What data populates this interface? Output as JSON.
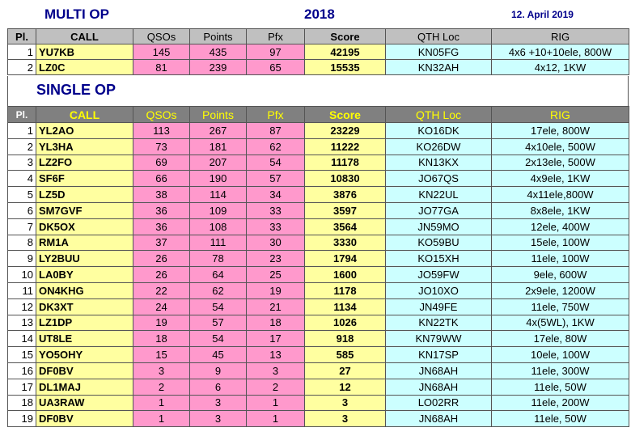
{
  "header": {
    "multi_title": "MULTI OP",
    "year": "2018",
    "date": "12. April 2019"
  },
  "single_title": "SINGLE OP",
  "columns": [
    "Pl.",
    "CALL",
    "QSOs",
    "Points",
    "Pfx",
    "Score",
    "QTH Loc",
    "RIG"
  ],
  "multi_rows": [
    {
      "pl": "1",
      "call": "YU7KB",
      "qsos": "145",
      "points": "435",
      "pfx": "97",
      "score": "42195",
      "qth": "KN05FG",
      "rig": "4x6 +10+10ele, 800W"
    },
    {
      "pl": "2",
      "call": "LZ0C",
      "qsos": "81",
      "points": "239",
      "pfx": "65",
      "score": "15535",
      "qth": "KN32AH",
      "rig": "4x12, 1KW"
    }
  ],
  "single_rows": [
    {
      "pl": "1",
      "call": "YL2AO",
      "qsos": "113",
      "points": "267",
      "pfx": "87",
      "score": "23229",
      "qth": "KO16DK",
      "rig": "17ele, 800W"
    },
    {
      "pl": "2",
      "call": "YL3HA",
      "qsos": "73",
      "points": "181",
      "pfx": "62",
      "score": "11222",
      "qth": "KO26DW",
      "rig": "4x10ele, 500W"
    },
    {
      "pl": "3",
      "call": "LZ2FO",
      "qsos": "69",
      "points": "207",
      "pfx": "54",
      "score": "11178",
      "qth": "KN13KX",
      "rig": "2x13ele, 500W"
    },
    {
      "pl": "4",
      "call": "SF6F",
      "qsos": "66",
      "points": "190",
      "pfx": "57",
      "score": "10830",
      "qth": "JO67QS",
      "rig": "4x9ele, 1KW"
    },
    {
      "pl": "5",
      "call": "LZ5D",
      "qsos": "38",
      "points": "114",
      "pfx": "34",
      "score": "3876",
      "qth": "KN22UL",
      "rig": "4x11ele,800W"
    },
    {
      "pl": "6",
      "call": "SM7GVF",
      "qsos": "36",
      "points": "109",
      "pfx": "33",
      "score": "3597",
      "qth": "JO77GA",
      "rig": "8x8ele, 1KW"
    },
    {
      "pl": "7",
      "call": "DK5OX",
      "qsos": "36",
      "points": "108",
      "pfx": "33",
      "score": "3564",
      "qth": "JN59MO",
      "rig": "12ele, 400W"
    },
    {
      "pl": "8",
      "call": "RM1A",
      "qsos": "37",
      "points": "111",
      "pfx": "30",
      "score": "3330",
      "qth": "KO59BU",
      "rig": "15ele, 100W"
    },
    {
      "pl": "9",
      "call": "LY2BUU",
      "qsos": "26",
      "points": "78",
      "pfx": "23",
      "score": "1794",
      "qth": "KO15XH",
      "rig": "11ele, 100W"
    },
    {
      "pl": "10",
      "call": "LA0BY",
      "qsos": "26",
      "points": "64",
      "pfx": "25",
      "score": "1600",
      "qth": "JO59FW",
      "rig": "9ele, 600W"
    },
    {
      "pl": "11",
      "call": "ON4KHG",
      "qsos": "22",
      "points": "62",
      "pfx": "19",
      "score": "1178",
      "qth": "JO10XO",
      "rig": "2x9ele, 1200W"
    },
    {
      "pl": "12",
      "call": "DK3XT",
      "qsos": "24",
      "points": "54",
      "pfx": "21",
      "score": "1134",
      "qth": "JN49FE",
      "rig": "11ele, 750W"
    },
    {
      "pl": "13",
      "call": "LZ1DP",
      "qsos": "19",
      "points": "57",
      "pfx": "18",
      "score": "1026",
      "qth": "KN22TK",
      "rig": "4x(5WL), 1KW"
    },
    {
      "pl": "14",
      "call": "UT8LE",
      "qsos": "18",
      "points": "54",
      "pfx": "17",
      "score": "918",
      "qth": "KN79WW",
      "rig": "17ele, 80W"
    },
    {
      "pl": "15",
      "call": "YO5OHY",
      "qsos": "15",
      "points": "45",
      "pfx": "13",
      "score": "585",
      "qth": "KN17SP",
      "rig": "10ele, 100W"
    },
    {
      "pl": "16",
      "call": "DF0BV",
      "qsos": "3",
      "points": "9",
      "pfx": "3",
      "score": "27",
      "qth": "JN68AH",
      "rig": "11ele, 300W"
    },
    {
      "pl": "17",
      "call": "DL1MAJ",
      "qsos": "2",
      "points": "6",
      "pfx": "2",
      "score": "12",
      "qth": "JN68AH",
      "rig": "11ele, 50W"
    },
    {
      "pl": "18",
      "call": "UA3RAW",
      "qsos": "1",
      "points": "3",
      "pfx": "1",
      "score": "3",
      "qth": "LO02RR",
      "rig": "11ele, 200W"
    },
    {
      "pl": "19",
      "call": "DF0BV",
      "qsos": "1",
      "points": "3",
      "pfx": "1",
      "score": "3",
      "qth": "JN68AH",
      "rig": "11ele, 50W"
    }
  ]
}
